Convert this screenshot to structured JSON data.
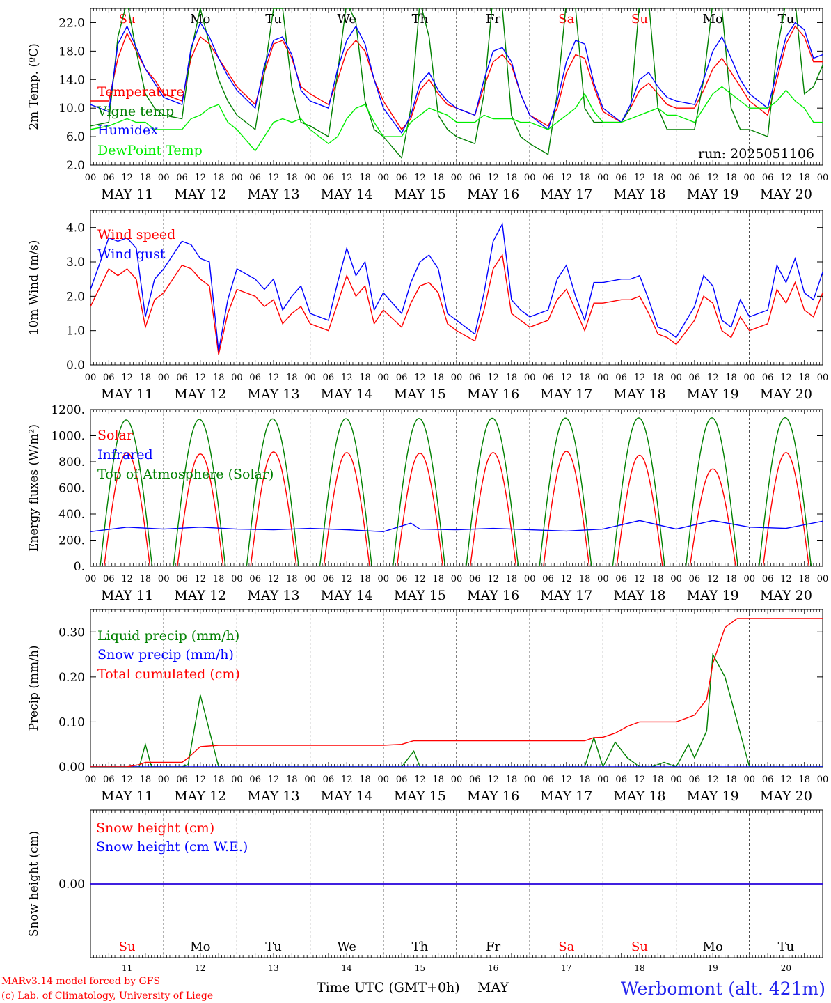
{
  "day_letters": [
    {
      "label": "Su",
      "color": "#ff0000"
    },
    {
      "label": "Mo",
      "color": "#000000"
    },
    {
      "label": "Tu",
      "color": "#000000"
    },
    {
      "label": "We",
      "color": "#000000"
    },
    {
      "label": "Th",
      "color": "#000000"
    },
    {
      "label": "Fr",
      "color": "#000000"
    },
    {
      "label": "Sa",
      "color": "#ff0000"
    },
    {
      "label": "Su",
      "color": "#ff0000"
    },
    {
      "label": "Mo",
      "color": "#000000"
    },
    {
      "label": "Tu",
      "color": "#000000"
    }
  ],
  "dates": [
    "MAY 11",
    "MAY 12",
    "MAY 13",
    "MAY 14",
    "MAY 15",
    "MAY 16",
    "MAY 17",
    "MAY 18",
    "MAY 19",
    "MAY 20"
  ],
  "day_numbers": [
    "11",
    "12",
    "13",
    "14",
    "15",
    "16",
    "17",
    "18",
    "19",
    "20"
  ],
  "hour_ticks": [
    "00",
    "06",
    "12",
    "18"
  ],
  "last_hour_tick": "00",
  "footer": {
    "credit1": "MARv3.14 model forced by GFS",
    "credit2": "(c) Lab. of Climatology, University of Liege",
    "time_label": "Time UTC (GMT+0h)",
    "month": "MAY",
    "station": "Werbomont (alt. 421m)"
  },
  "chart_data": [
    {
      "type": "line",
      "ylabel": "2m Temp. (ºC)",
      "ylim": [
        2,
        24
      ],
      "yticks": [
        "2.0",
        "6.0",
        "10.0",
        "14.0",
        "18.0",
        "22.0"
      ],
      "ytick_values": [
        2,
        6,
        10,
        14,
        18,
        22
      ],
      "annotation": "run: 2025051106",
      "x_hours": [
        0,
        6,
        9,
        12,
        15,
        18,
        21,
        24,
        30,
        33,
        36,
        39,
        42,
        45,
        48,
        54,
        57,
        60,
        63,
        66,
        69,
        72,
        78,
        81,
        84,
        87,
        90,
        93,
        96,
        102,
        105,
        108,
        111,
        114,
        117,
        120,
        126,
        129,
        132,
        135,
        138,
        141,
        144,
        150,
        153,
        156,
        159,
        162,
        165,
        168,
        174,
        177,
        180,
        183,
        186,
        189,
        192,
        198,
        201,
        204,
        207,
        210,
        213,
        216,
        222,
        225,
        228,
        231,
        234,
        237,
        240
      ],
      "series": [
        {
          "name": "Temperature",
          "color": "#ff0000",
          "values": [
            11,
            11,
            17,
            20.5,
            18,
            15.5,
            14,
            12,
            11,
            17,
            20,
            19,
            17,
            15,
            13,
            10.5,
            15,
            19,
            19.5,
            17,
            13,
            12,
            10.5,
            14,
            18,
            19.5,
            18,
            14,
            11,
            7,
            8.5,
            12.5,
            14,
            12,
            10.5,
            10,
            9,
            13,
            16.5,
            17.5,
            16,
            12,
            9,
            7.5,
            10,
            15,
            17.5,
            17,
            13,
            9.5,
            8,
            10,
            12.5,
            13.5,
            12,
            10.5,
            10,
            10,
            12.5,
            15.5,
            17,
            15,
            13,
            11,
            9,
            14,
            19,
            21.5,
            20,
            16.5,
            16.5
          ]
        },
        {
          "name": "Vigne temp",
          "color": "#008000",
          "values": [
            7.5,
            8,
            20,
            25,
            18,
            12,
            10,
            9,
            8.5,
            18,
            24,
            19,
            14,
            11,
            9,
            7,
            15,
            24,
            24,
            13,
            8,
            7.5,
            6,
            15,
            25,
            22,
            11,
            7,
            6,
            3,
            10,
            25,
            20,
            9,
            7,
            6,
            5,
            12,
            26,
            24,
            9,
            6,
            5,
            3.5,
            12,
            25,
            24,
            10,
            8,
            8,
            8,
            10,
            25,
            25,
            10,
            7,
            7,
            7,
            14,
            25,
            24,
            10,
            7,
            7,
            6,
            18,
            25,
            25,
            12,
            13,
            16
          ]
        },
        {
          "name": "Humidex",
          "color": "#0000ff",
          "values": [
            10.5,
            9.5,
            19,
            21.5,
            18.5,
            15.5,
            13.5,
            11.5,
            10.5,
            18.5,
            22,
            20,
            17,
            14.5,
            12.5,
            10,
            16,
            19.5,
            20,
            17.5,
            12.5,
            11,
            10,
            15.5,
            19.5,
            21.5,
            19,
            14,
            10,
            6.5,
            9,
            13.5,
            15,
            12.5,
            11,
            10,
            9,
            14,
            18,
            18.5,
            16.5,
            12,
            9,
            7,
            11,
            16.5,
            19.5,
            19,
            13.5,
            10,
            8,
            10.5,
            14,
            15,
            13,
            11.5,
            11,
            10.5,
            14,
            18,
            20,
            17,
            14,
            12,
            10,
            15,
            20,
            22,
            21,
            17,
            17.5
          ]
        },
        {
          "name": "DewPoint Temp",
          "color": "#00ee00",
          "values": [
            7,
            7.5,
            8,
            8.5,
            8,
            8,
            7,
            7,
            7,
            8.5,
            9,
            10,
            10.5,
            8,
            7,
            4,
            6,
            8,
            8.5,
            8,
            8.5,
            7,
            5,
            6,
            8.5,
            10,
            10.5,
            8,
            6,
            6,
            8,
            9,
            10,
            9.5,
            9,
            8,
            8,
            9,
            8.5,
            8.5,
            8.5,
            8,
            8,
            7,
            8,
            9,
            10,
            12,
            9.5,
            8,
            8,
            8.5,
            9,
            9.5,
            10,
            9,
            9,
            8,
            10,
            12,
            13,
            12,
            11,
            10,
            10,
            11,
            12.5,
            11,
            10,
            8,
            8
          ]
        }
      ]
    },
    {
      "type": "line",
      "ylabel": "10m Wind (m/s)",
      "ylim": [
        0,
        4.5
      ],
      "yticks": [
        "0.0",
        "1.0",
        "2.0",
        "3.0",
        "4.0"
      ],
      "ytick_values": [
        0,
        1,
        2,
        3,
        4
      ],
      "x_hours": [
        0,
        6,
        9,
        12,
        15,
        18,
        21,
        24,
        30,
        33,
        36,
        39,
        42,
        45,
        48,
        54,
        57,
        60,
        63,
        66,
        69,
        72,
        78,
        81,
        84,
        87,
        90,
        93,
        96,
        102,
        105,
        108,
        111,
        114,
        117,
        120,
        126,
        129,
        132,
        135,
        138,
        141,
        144,
        150,
        153,
        156,
        159,
        162,
        165,
        168,
        174,
        177,
        180,
        183,
        186,
        189,
        192,
        198,
        201,
        204,
        207,
        210,
        213,
        216,
        222,
        225,
        228,
        231,
        234,
        237,
        240
      ],
      "series": [
        {
          "name": "Wind speed",
          "color": "#ff0000",
          "values": [
            1.7,
            2.8,
            2.6,
            2.8,
            2.5,
            1.1,
            1.9,
            2.1,
            2.9,
            2.8,
            2.5,
            2.3,
            0.3,
            1.5,
            2.2,
            2.0,
            1.7,
            1.9,
            1.2,
            1.5,
            1.7,
            1.2,
            1.0,
            1.8,
            2.6,
            2.0,
            2.3,
            1.2,
            1.6,
            1.1,
            1.8,
            2.3,
            2.4,
            2.1,
            1.2,
            1.0,
            0.7,
            1.6,
            2.8,
            3.2,
            1.5,
            1.3,
            1.1,
            1.3,
            1.9,
            2.2,
            1.6,
            1.0,
            1.8,
            1.8,
            1.9,
            1.9,
            2.0,
            1.5,
            0.9,
            0.8,
            0.6,
            1.3,
            2.0,
            1.8,
            1.0,
            0.8,
            1.4,
            1.0,
            1.2,
            2.2,
            1.8,
            2.4,
            1.6,
            1.4,
            2.1
          ]
        },
        {
          "name": "Wind gust",
          "color": "#0000ff",
          "values": [
            2.2,
            3.7,
            3.6,
            3.7,
            3.4,
            1.4,
            2.5,
            2.8,
            3.6,
            3.5,
            3.1,
            3.0,
            0.4,
            1.9,
            2.8,
            2.5,
            2.2,
            2.5,
            1.6,
            2.0,
            2.3,
            1.5,
            1.3,
            2.4,
            3.4,
            2.6,
            3.0,
            1.6,
            2.1,
            1.5,
            2.4,
            3.0,
            3.2,
            2.8,
            1.5,
            1.3,
            0.9,
            2.1,
            3.6,
            4.1,
            1.9,
            1.6,
            1.4,
            1.6,
            2.5,
            2.9,
            2.0,
            1.3,
            2.4,
            2.4,
            2.5,
            2.5,
            2.6,
            1.9,
            1.1,
            1.0,
            0.8,
            1.7,
            2.6,
            2.3,
            1.3,
            1.1,
            1.9,
            1.4,
            1.6,
            2.9,
            2.4,
            3.1,
            2.1,
            1.9,
            2.7
          ]
        }
      ]
    },
    {
      "type": "line",
      "ylabel": "Energy fluxes (W/m²)",
      "ylim": [
        0,
        1200
      ],
      "yticks": [
        "0.",
        "200.",
        "400.",
        "600.",
        "800.",
        "1000.",
        "1200."
      ],
      "ytick_values": [
        0,
        200,
        400,
        600,
        800,
        1000,
        1200
      ],
      "series": [
        {
          "name": "Solar",
          "color": "#ff0000",
          "peaks": [
            870,
            860,
            875,
            870,
            865,
            870,
            880,
            850,
            745,
            870
          ]
        },
        {
          "name": "Infrared",
          "color": "#0000ff",
          "x_hours": [
            0,
            12,
            24,
            36,
            48,
            60,
            72,
            84,
            96,
            105,
            108,
            120,
            132,
            144,
            156,
            168,
            180,
            192,
            204,
            216,
            228,
            240
          ],
          "values": [
            265,
            300,
            285,
            300,
            285,
            280,
            290,
            280,
            265,
            330,
            285,
            280,
            290,
            280,
            270,
            285,
            350,
            285,
            350,
            300,
            290,
            345
          ]
        },
        {
          "name": "Top of Atmosphere (Solar)",
          "color": "#008000",
          "peaks": [
            1120,
            1125,
            1128,
            1130,
            1132,
            1134,
            1135,
            1136,
            1137,
            1138
          ]
        }
      ]
    },
    {
      "type": "line",
      "ylabel": "Precip (mm/h)",
      "ylim": [
        0,
        0.35
      ],
      "yticks": [
        "0.00",
        "0.10",
        "0.20",
        "0.30"
      ],
      "ytick_values": [
        0,
        0.1,
        0.2,
        0.3
      ],
      "x_hours": [
        0,
        12,
        16,
        18,
        20,
        24,
        30,
        32,
        36,
        42,
        48,
        60,
        72,
        84,
        96,
        102,
        106,
        108,
        120,
        144,
        162,
        165,
        168,
        172,
        176,
        180,
        184,
        188,
        192,
        196,
        198,
        202,
        204,
        208,
        212,
        216,
        240
      ],
      "series": [
        {
          "name": "Liquid precip (mm/h)",
          "color": "#008000",
          "values": [
            0,
            0,
            0,
            0.05,
            0,
            0,
            0,
            0.005,
            0.16,
            0,
            0,
            0,
            0,
            0,
            0,
            0,
            0.035,
            0,
            0,
            0,
            0,
            0.065,
            0,
            0.055,
            0.02,
            0,
            0,
            0.01,
            0,
            0.05,
            0.02,
            0.08,
            0.25,
            0.2,
            0.1,
            0,
            0
          ]
        },
        {
          "name": "Snow precip (mm/h)",
          "color": "#0000ff",
          "values": [
            0,
            0,
            0,
            0,
            0,
            0,
            0,
            0,
            0,
            0,
            0,
            0,
            0,
            0,
            0,
            0,
            0,
            0,
            0,
            0,
            0,
            0,
            0,
            0,
            0,
            0,
            0,
            0,
            0,
            0,
            0,
            0,
            0,
            0,
            0,
            0,
            0
          ]
        },
        {
          "name": "Total cumulated (cm)",
          "color": "#ff0000",
          "values": [
            0,
            0,
            0.005,
            0.01,
            0.01,
            0.01,
            0.01,
            0.02,
            0.045,
            0.048,
            0.048,
            0.048,
            0.048,
            0.048,
            0.048,
            0.05,
            0.058,
            0.058,
            0.058,
            0.058,
            0.058,
            0.065,
            0.066,
            0.075,
            0.09,
            0.1,
            0.1,
            0.1,
            0.1,
            0.11,
            0.115,
            0.15,
            0.23,
            0.31,
            0.33,
            0.33,
            0.33
          ]
        }
      ]
    },
    {
      "type": "line",
      "ylabel": "Snow height (cm)",
      "ylim": [
        -1,
        1
      ],
      "yticks": [
        "0.00"
      ],
      "ytick_values": [
        0
      ],
      "series": [
        {
          "name": "Snow height (cm)",
          "color": "#ff0000",
          "values": [
            0,
            0
          ]
        },
        {
          "name": "Snow height (cm W.E.)",
          "color": "#0000ff",
          "values": [
            0,
            0
          ]
        }
      ]
    }
  ]
}
